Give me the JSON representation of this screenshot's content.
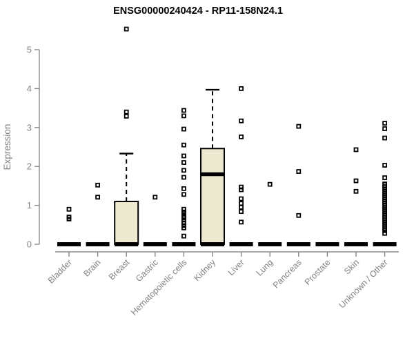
{
  "chart_data": {
    "type": "boxplot",
    "title": "ENSG00000240424 - RP11-158N24.1",
    "ylabel": "Expression",
    "xlabel": "",
    "ylim": [
      0,
      5
    ],
    "yticks": [
      0,
      1,
      2,
      3,
      4,
      5
    ],
    "grid": false,
    "legend": "none",
    "categories": [
      "Bladder",
      "Brain",
      "Breast",
      "Gastric",
      "Hematopoietic cells",
      "Kidney",
      "Liver",
      "Lung",
      "Pancreas",
      "Prostate",
      "Skin",
      "Unknown / Other"
    ],
    "series": [
      {
        "name": "Bladder",
        "q1": 0,
        "median": 0,
        "q3": 0,
        "whisker_low": 0,
        "whisker_high": 0,
        "outliers": [
          0.9,
          0.7,
          0.65
        ]
      },
      {
        "name": "Brain",
        "q1": 0,
        "median": 0,
        "q3": 0,
        "whisker_low": 0,
        "whisker_high": 0,
        "outliers": [
          1.52,
          1.21
        ]
      },
      {
        "name": "Breast",
        "q1": 0,
        "median": 0,
        "q3": 1.1,
        "whisker_low": 0,
        "whisker_high": 2.33,
        "outliers": [
          3.4,
          3.29,
          5.53
        ]
      },
      {
        "name": "Gastric",
        "q1": 0,
        "median": 0,
        "q3": 0,
        "whisker_low": 0,
        "whisker_high": 0,
        "outliers": [
          1.21
        ]
      },
      {
        "name": "Hematopoietic cells",
        "q1": 0,
        "median": 0,
        "q3": 0,
        "whisker_low": 0,
        "whisker_high": 0,
        "outliers": [
          3.44,
          3.3,
          2.96,
          2.55,
          2.27,
          2.1,
          1.9,
          1.72,
          1.43,
          1.28,
          0.9,
          0.83,
          0.78,
          0.72,
          0.68,
          0.62,
          0.55,
          0.48,
          0.42,
          0.21
        ]
      },
      {
        "name": "Kidney",
        "q1": 0,
        "median": 1.8,
        "q3": 2.46,
        "whisker_low": 0,
        "whisker_high": 3.97,
        "outliers": []
      },
      {
        "name": "Liver",
        "q1": 0,
        "median": 0,
        "q3": 0,
        "whisker_low": 0,
        "whisker_high": 0,
        "outliers": [
          4.0,
          3.17,
          2.76,
          1.47,
          1.4,
          1.17,
          1.05,
          0.95,
          0.84,
          0.57
        ]
      },
      {
        "name": "Lung",
        "q1": 0,
        "median": 0,
        "q3": 0,
        "whisker_low": 0,
        "whisker_high": 0,
        "outliers": [
          1.54
        ]
      },
      {
        "name": "Pancreas",
        "q1": 0,
        "median": 0,
        "q3": 0,
        "whisker_low": 0,
        "whisker_high": 0,
        "outliers": [
          3.03,
          1.87,
          0.74
        ]
      },
      {
        "name": "Prostate",
        "q1": 0,
        "median": 0,
        "q3": 0,
        "whisker_low": 0,
        "whisker_high": 0,
        "outliers": []
      },
      {
        "name": "Skin",
        "q1": 0,
        "median": 0,
        "q3": 0,
        "whisker_low": 0,
        "whisker_high": 0,
        "outliers": [
          2.43,
          1.63,
          1.36
        ]
      },
      {
        "name": "Unknown / Other",
        "q1": 0,
        "median": 0,
        "q3": 0,
        "whisker_low": 0,
        "whisker_high": 0,
        "outliers": [
          3.11,
          2.97,
          2.73,
          2.03,
          1.71,
          1.55,
          1.5,
          1.45,
          1.4,
          1.35,
          1.3,
          1.25,
          1.2,
          1.15,
          1.1,
          1.05,
          1.0,
          0.95,
          0.9,
          0.85,
          0.8,
          0.75,
          0.7,
          0.65,
          0.6,
          0.55,
          0.5,
          0.45,
          0.4,
          0.35,
          0.28
        ]
      }
    ],
    "colors": {
      "box_fill": "#EDE8D0",
      "box_stroke": "#000000",
      "median": "#000000",
      "outlier_marker": "#000000",
      "axis": "#8A8A8A",
      "tick_label": "#838383",
      "title": "#000000"
    }
  }
}
